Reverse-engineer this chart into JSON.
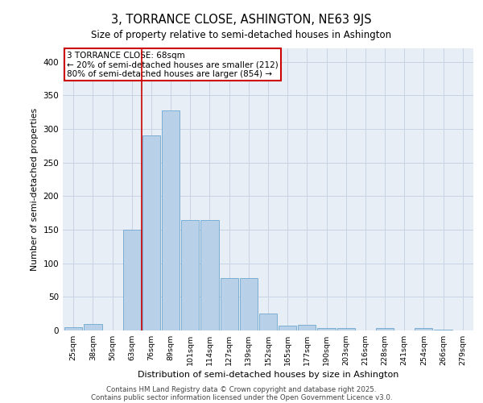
{
  "title": "3, TORRANCE CLOSE, ASHINGTON, NE63 9JS",
  "subtitle": "Size of property relative to semi-detached houses in Ashington",
  "xlabel": "Distribution of semi-detached houses by size in Ashington",
  "ylabel": "Number of semi-detached properties",
  "categories": [
    "25sqm",
    "38sqm",
    "50sqm",
    "63sqm",
    "76sqm",
    "89sqm",
    "101sqm",
    "114sqm",
    "127sqm",
    "139sqm",
    "152sqm",
    "165sqm",
    "177sqm",
    "190sqm",
    "203sqm",
    "216sqm",
    "228sqm",
    "241sqm",
    "254sqm",
    "266sqm",
    "279sqm"
  ],
  "values": [
    5,
    10,
    0,
    150,
    290,
    328,
    165,
    165,
    78,
    78,
    25,
    7,
    9,
    4,
    4,
    0,
    4,
    0,
    4,
    1,
    0
  ],
  "bar_color": "#b8d0e8",
  "bar_edge_color": "#6fa8d0",
  "grid_color": "#c8d4e4",
  "bg_color": "#e8eef6",
  "vline_x": 3.5,
  "vline_color": "#cc0000",
  "annotation_text": "3 TORRANCE CLOSE: 68sqm\n← 20% of semi-detached houses are smaller (212)\n80% of semi-detached houses are larger (854) →",
  "annotation_box_color": "#cc0000",
  "footer_line1": "Contains HM Land Registry data © Crown copyright and database right 2025.",
  "footer_line2": "Contains public sector information licensed under the Open Government Licence v3.0.",
  "ylim": [
    0,
    420
  ],
  "yticks": [
    0,
    50,
    100,
    150,
    200,
    250,
    300,
    350,
    400
  ]
}
